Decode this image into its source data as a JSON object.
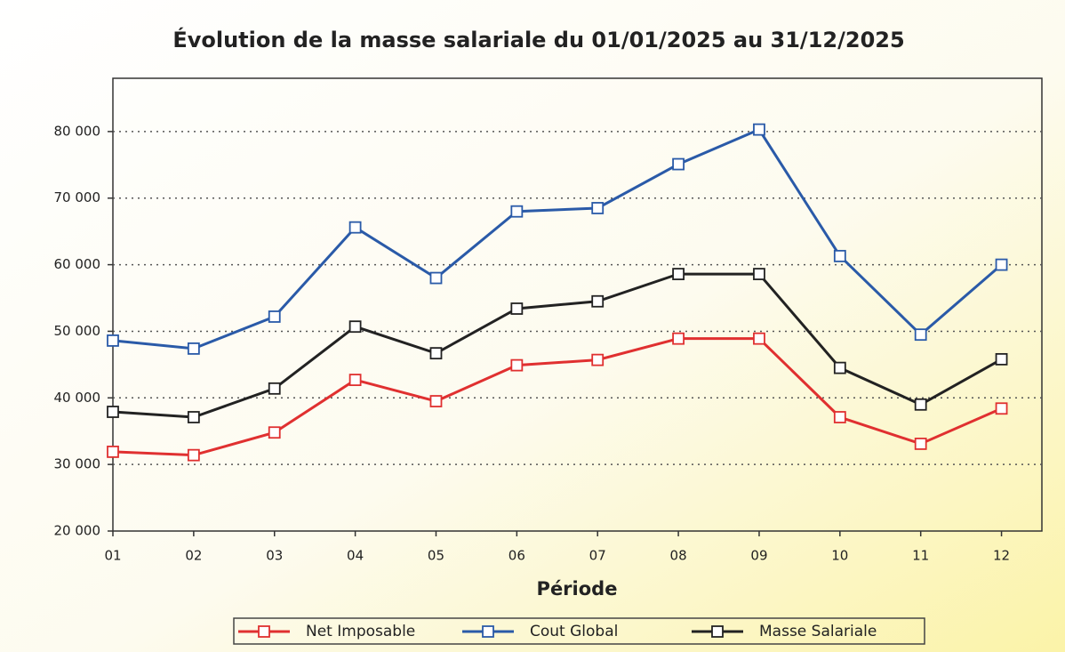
{
  "chart_data": {
    "type": "line",
    "title": "Évolution de la masse salariale du 01/01/2025 au 31/12/2025",
    "x_label": "Période",
    "categories": [
      "01",
      "02",
      "03",
      "04",
      "05",
      "06",
      "07",
      "08",
      "09",
      "10",
      "11",
      "12"
    ],
    "series": [
      {
        "name": "Net Imposable",
        "color": "#e03030",
        "values": [
          31900,
          31400,
          34800,
          42700,
          39500,
          44900,
          45700,
          48900,
          48900,
          37100,
          33100,
          38400
        ]
      },
      {
        "name": "Cout Global",
        "color": "#2a5aa8",
        "values": [
          48600,
          47400,
          52200,
          65600,
          58000,
          68000,
          68500,
          75100,
          80300,
          61300,
          49500,
          60000
        ]
      },
      {
        "name": "Masse Salariale",
        "color": "#222222",
        "values": [
          37900,
          37100,
          41400,
          50700,
          46700,
          53400,
          54500,
          58600,
          58600,
          44500,
          39000,
          45800
        ]
      }
    ],
    "ylim": [
      20000,
      88000
    ],
    "yticks": [
      {
        "value": 20000,
        "label": "20 000"
      },
      {
        "value": 30000,
        "label": "30 000"
      },
      {
        "value": 40000,
        "label": "40 000"
      },
      {
        "value": 50000,
        "label": "50 000"
      },
      {
        "value": 60000,
        "label": "60 000"
      },
      {
        "value": 70000,
        "label": "70 000"
      },
      {
        "value": 80000,
        "label": "80 000"
      }
    ],
    "grid": true
  }
}
